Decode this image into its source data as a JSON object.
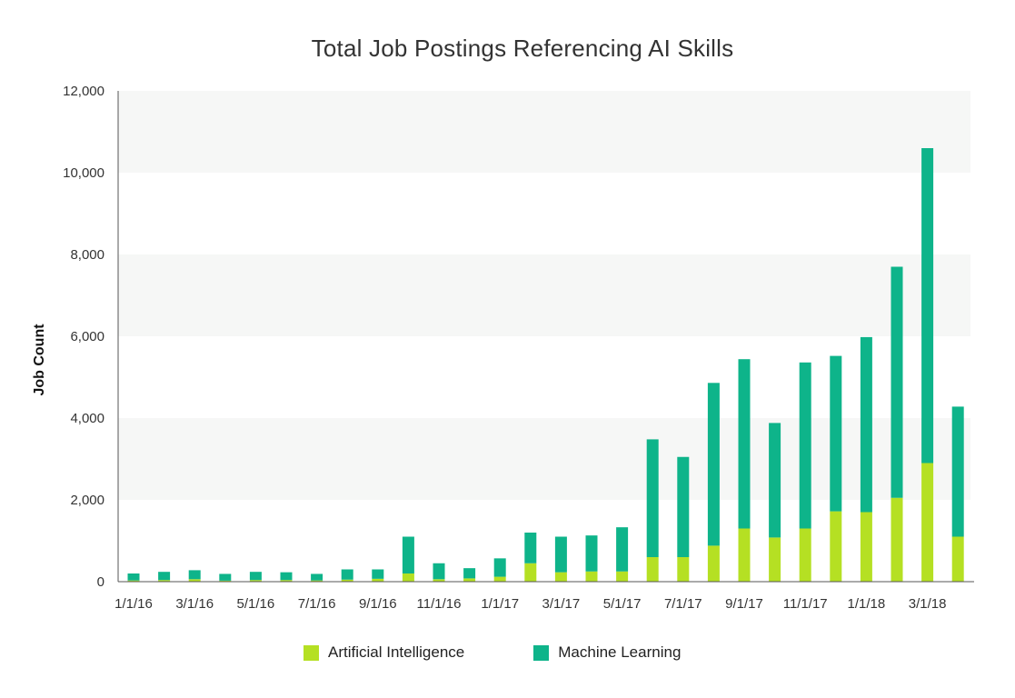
{
  "chart_data": {
    "type": "bar",
    "stacked": true,
    "title": "Total Job Postings Referencing AI Skills",
    "xlabel": "",
    "ylabel": "Job Count",
    "ylim": [
      0,
      12000
    ],
    "yticks": [
      0,
      2000,
      4000,
      6000,
      8000,
      10000,
      12000
    ],
    "ytick_labels": [
      "0",
      "2,000",
      "4,000",
      "6,000",
      "8,000",
      "10,000",
      "12,000"
    ],
    "grid": "alternating horizontal bands",
    "legend_position": "bottom",
    "categories": [
      "1/1/16",
      "2/1/16",
      "3/1/16",
      "4/1/16",
      "5/1/16",
      "6/1/16",
      "7/1/16",
      "8/1/16",
      "9/1/16",
      "10/1/16",
      "11/1/16",
      "12/1/16",
      "1/1/17",
      "2/1/17",
      "3/1/17",
      "4/1/17",
      "5/1/17",
      "6/1/17",
      "7/1/17",
      "8/1/17",
      "9/1/17",
      "10/1/17",
      "11/1/17",
      "12/1/17",
      "1/1/18",
      "2/1/18",
      "3/1/18",
      "4/1/18"
    ],
    "xtick_labels": [
      "1/1/16",
      "3/1/16",
      "5/1/16",
      "7/1/16",
      "9/1/16",
      "11/1/16",
      "1/1/17",
      "3/1/17",
      "5/1/17",
      "7/1/17",
      "9/1/17",
      "11/1/17",
      "1/1/18",
      "3/1/18"
    ],
    "series": [
      {
        "name": "Artificial Intelligence",
        "color": "#b5e023",
        "values": [
          30,
          40,
          60,
          25,
          40,
          40,
          30,
          50,
          70,
          200,
          60,
          80,
          120,
          450,
          230,
          250,
          250,
          600,
          600,
          880,
          1300,
          1080,
          1300,
          1720,
          1700,
          2050,
          2900,
          1100
        ]
      },
      {
        "name": "Machine Learning",
        "color": "#0eb48a",
        "values": [
          170,
          200,
          220,
          165,
          200,
          190,
          160,
          250,
          230,
          900,
          390,
          250,
          450,
          750,
          870,
          880,
          1080,
          2880,
          2450,
          3980,
          4140,
          2800,
          4060,
          3800,
          4280,
          5650,
          7700,
          3180
        ]
      }
    ]
  }
}
